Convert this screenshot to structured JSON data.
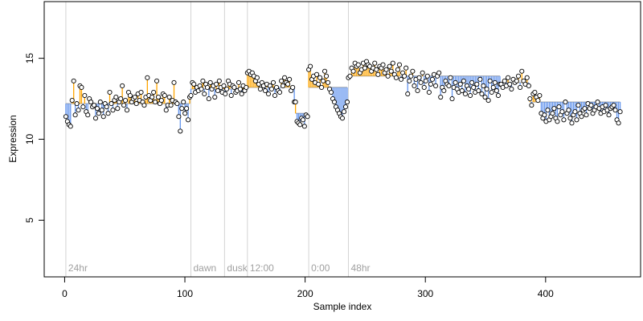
{
  "chart_data": {
    "type": "scatter",
    "title": "",
    "xlabel": "Sample index",
    "ylabel": "Expression",
    "xlim": [
      -17,
      479
    ],
    "ylim": [
      1.5,
      18.5
    ],
    "xticks": [
      0,
      100,
      200,
      300,
      400
    ],
    "yticks": [
      5,
      10,
      15
    ],
    "grid": false,
    "legend": "none",
    "colors": {
      "above": "#FFA500",
      "below": "#6495ED",
      "points": "#000000",
      "phase_lines": "#D3D3D3",
      "phase_labels": "#A0A0A0"
    },
    "phase_markers": [
      {
        "label": "24hr",
        "x": 1
      },
      {
        "label": "dawn",
        "x": 105
      },
      {
        "label": "dusk",
        "x": 133
      },
      {
        "label": "12:00",
        "x": 152
      },
      {
        "label": "0:00",
        "x": 203
      },
      {
        "label": "48hr",
        "x": 236
      }
    ],
    "segments": [
      {
        "start": 1,
        "end": 104,
        "level": 12.2,
        "values": [
          11.4,
          11.1,
          10.9,
          10.8,
          12.4,
          13.6,
          11.5,
          12.2,
          11.8,
          13.3,
          13.2,
          12.0,
          12.7,
          11.7,
          11.5,
          12.5,
          12.3,
          12.0,
          12.1,
          11.3,
          11.9,
          11.6,
          12.3,
          11.8,
          11.4,
          12.2,
          12.0,
          11.6,
          12.9,
          12.2,
          11.8,
          12.4,
          12.6,
          11.9,
          12.3,
          12.5,
          13.3,
          12.1,
          12.4,
          11.8,
          12.9,
          12.7,
          12.3,
          12.5,
          12.6,
          12.2,
          12.8,
          12.4,
          12.9,
          12.3,
          12.1,
          12.6,
          13.8,
          12.7,
          12.4,
          12.6,
          12.9,
          12.3,
          13.6,
          12.6,
          12.2,
          12.4,
          12.8,
          12.7,
          11.8,
          12.1,
          12.6,
          12.1,
          12.4,
          13.5,
          12.3,
          12.2,
          11.4,
          10.5,
          11.9,
          12.3,
          11.6,
          11.9,
          11.2,
          12.6
        ]
      },
      {
        "start": 105,
        "end": 151,
        "level": 13.1,
        "values": [
          12.7,
          13.5,
          13.4,
          12.9,
          13.2,
          13.0,
          13.3,
          13.1,
          13.6,
          12.8,
          13.4,
          13.2,
          12.5,
          13.5,
          13.1,
          13.3,
          12.6,
          13.4,
          13.0,
          13.6,
          13.2,
          12.9,
          13.3,
          12.8,
          13.1,
          13.6,
          13.4,
          12.7,
          13.3,
          13.2,
          12.9,
          13.0,
          13.5,
          13.1,
          12.8,
          13.3,
          13.0,
          13.2
        ]
      },
      {
        "start": 152,
        "end": 191,
        "level": 13.2,
        "values": [
          14.1,
          14.2,
          14.0,
          14.1,
          13.9,
          13.6,
          13.8,
          13.4,
          13.1,
          13.5,
          13.3,
          13.0,
          13.4,
          12.8,
          13.3,
          13.1,
          13.5,
          12.7,
          13.2,
          13.0,
          12.9,
          13.6,
          13.3,
          13.8,
          13.5,
          13.4,
          13.7,
          13.0,
          13.2,
          12.3
        ]
      },
      {
        "start": 192,
        "end": 202,
        "level": 11.6,
        "values": [
          12.3,
          11.1,
          11.0,
          10.9,
          11.3,
          11.2,
          10.8,
          11.5,
          11.4
        ]
      },
      {
        "start": 203,
        "end": 235,
        "level": 13.2,
        "values": [
          14.3,
          14.5,
          13.7,
          13.9,
          13.5,
          14.0,
          13.4,
          13.8,
          13.2,
          13.6,
          14.2,
          13.9,
          13.5,
          13.1,
          12.9,
          12.5,
          12.3,
          12.0,
          11.8,
          11.6,
          11.4,
          11.3,
          11.7,
          12.0,
          12.3
        ]
      },
      {
        "start": 236,
        "end": 362,
        "level": 13.9,
        "values": [
          13.8,
          13.9,
          14.4,
          14.2,
          14.7,
          14.5,
          14.6,
          14.1,
          14.3,
          14.7,
          14.4,
          14.8,
          14.6,
          14.5,
          14.2,
          14.4,
          14.7,
          14.3,
          14.0,
          14.5,
          14.4,
          14.6,
          14.1,
          14.3,
          13.9,
          14.5,
          14.2,
          14.7,
          14.0,
          13.8,
          14.3,
          14.6,
          13.7,
          14.1,
          13.9,
          14.4,
          12.8,
          13.6,
          13.9,
          14.2,
          13.3,
          13.7,
          13.0,
          13.8,
          13.5,
          14.1,
          13.2,
          13.6,
          13.9,
          12.9,
          13.4,
          13.7,
          14.0,
          13.3,
          13.9,
          14.1,
          12.6,
          13.2,
          13.0,
          13.6,
          13.4,
          13.3,
          13.8,
          12.5,
          13.2,
          13.5,
          13.1,
          12.9,
          13.4,
          13.0,
          13.6,
          12.8,
          13.3,
          13.1,
          12.7,
          13.5,
          13.2,
          12.9,
          13.4,
          13.0,
          13.7,
          12.8,
          13.3,
          12.6,
          13.1,
          12.4,
          13.6,
          12.9,
          13.2,
          13.5,
          13.0,
          12.7,
          13.4
        ]
      },
      {
        "start": 363,
        "end": 386,
        "level": 13.5,
        "values": [
          13.4,
          13.2,
          13.6,
          13.3,
          13.8,
          13.4,
          13.1,
          13.7,
          13.5,
          13.6,
          13.9,
          13.2,
          14.2,
          13.6,
          13.4,
          13.8,
          13.3
        ]
      },
      {
        "start": 387,
        "end": 462,
        "level": 12.3,
        "values": [
          12.5,
          12.1,
          12.8,
          12.9,
          12.6,
          12.4,
          12.7,
          11.6,
          11.3,
          11.5,
          11.1,
          11.8,
          11.2,
          11.4,
          11.6,
          11.9,
          11.3,
          11.1,
          12.0,
          11.5,
          11.7,
          11.2,
          12.3,
          11.6,
          11.8,
          11.3,
          11.0,
          11.5,
          11.7,
          11.2,
          12.1,
          11.6,
          11.4,
          11.8,
          11.9,
          11.5,
          12.2,
          11.9,
          12.1,
          11.6,
          11.8,
          12.0,
          12.3,
          11.9,
          11.6,
          12.0,
          11.7,
          12.1,
          11.8,
          11.5,
          11.9,
          12.0,
          12.1,
          11.8,
          11.2,
          11.0,
          11.7
        ]
      }
    ]
  }
}
